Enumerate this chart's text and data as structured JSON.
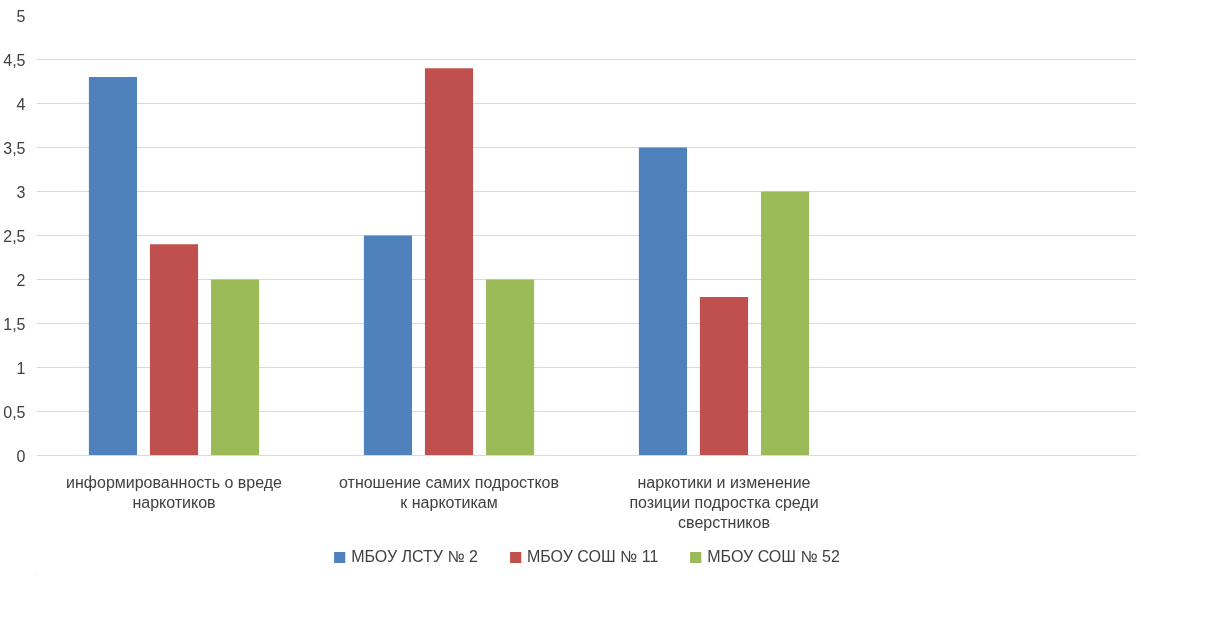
{
  "chart_data": {
    "type": "bar",
    "categories": [
      "информированность о вреде наркотиков",
      "отношение самих подростков к наркотикам",
      "наркотики и изменение позиции подростка среди сверстников",
      null
    ],
    "series": [
      {
        "name": "МБОУ ЛСТУ № 2",
        "color": "#4f81bd",
        "values": [
          4.3,
          2.5,
          3.5,
          null
        ]
      },
      {
        "name": "МБОУ СОШ № 11",
        "color": "#c0504d",
        "values": [
          2.4,
          4.4,
          1.8,
          null
        ]
      },
      {
        "name": "МБОУ СОШ № 52",
        "color": "#9bbb59",
        "values": [
          2.0,
          2.0,
          3.0,
          null
        ]
      }
    ],
    "ylim": [
      0,
      5
    ],
    "yticks": [
      0,
      {
        "value": 0.5,
        "label": "0,5"
      },
      1,
      {
        "value": 1.5,
        "label": "1,5"
      },
      2,
      {
        "value": 2.5,
        "label": "2,5"
      },
      3,
      {
        "value": 3.5,
        "label": "3,5"
      },
      4,
      {
        "value": 4.5,
        "label": "4,5"
      },
      5
    ],
    "grid": "y",
    "legend": "bottom"
  }
}
